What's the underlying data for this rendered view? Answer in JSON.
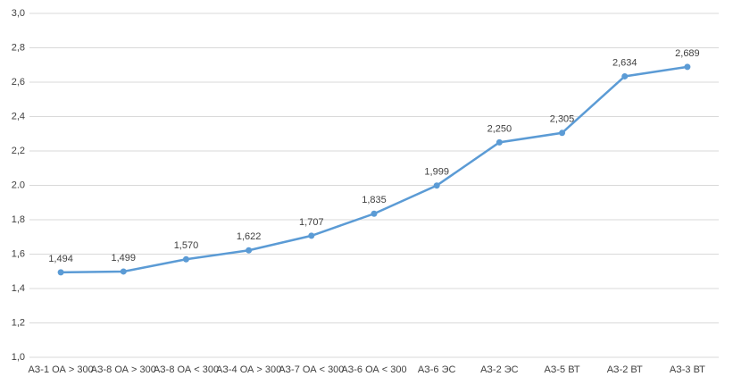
{
  "chart_data": {
    "type": "line",
    "categories": [
      "АЗ-1 ОА > 300",
      "АЗ-8 ОА > 300",
      "АЗ-8 ОА < 300",
      "АЗ-4 ОА > 300",
      "АЗ-7 ОА < 300",
      "АЗ-6 ОА < 300",
      "АЗ-6 ЭС",
      "АЗ-2 ЭС",
      "АЗ-5 ВТ",
      "АЗ-2 ВТ",
      "АЗ-3 ВТ"
    ],
    "series": [
      {
        "color": "#5b9bd5",
        "values": [
          1.494,
          1.499,
          1.57,
          1.622,
          1.707,
          1.835,
          1.999,
          2.25,
          2.305,
          2.634,
          2.689
        ],
        "value_labels": [
          "1,494",
          "1,499",
          "1,570",
          "1,622",
          "1,707",
          "1,835",
          "1,999",
          "2,250",
          "2,305",
          "2,634",
          "2,689"
        ]
      }
    ],
    "ylim": [
      1.0,
      3.0
    ],
    "yticks": [
      {
        "value": 1.0,
        "label": "1,0"
      },
      {
        "value": 1.2,
        "label": "1,2"
      },
      {
        "value": 1.4,
        "label": "1,4"
      },
      {
        "value": 1.6,
        "label": "1,6"
      },
      {
        "value": 1.8,
        "label": "1,8"
      },
      {
        "value": 2.0,
        "label": "2.0"
      },
      {
        "value": 2.2,
        "label": "2,2"
      },
      {
        "value": 2.4,
        "label": "2,4"
      },
      {
        "value": 2.6,
        "label": "2,6"
      },
      {
        "value": 2.8,
        "label": "2,8"
      },
      {
        "value": 3.0,
        "label": "3,0"
      }
    ],
    "grid": true
  }
}
